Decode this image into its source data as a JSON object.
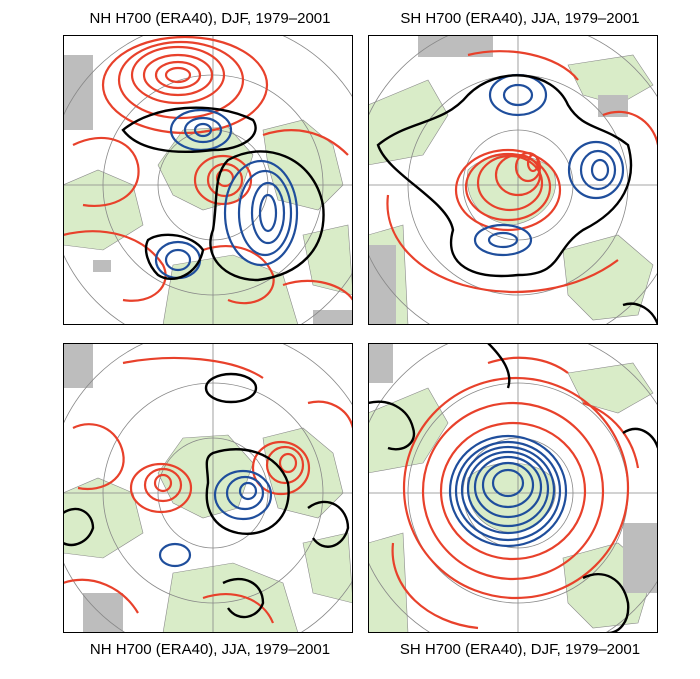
{
  "figure": {
    "panels": [
      {
        "title": "NH H700 (ERA40), DJF, 1979–2001"
      },
      {
        "title": "SH H700 (ERA40), JJA, 1979–2001"
      },
      {
        "title": "NH H700 (ERA40), JJA, 1979–2001"
      },
      {
        "title": "SH H700 (ERA40), DJF, 1979–2001"
      }
    ],
    "colors": {
      "positive_contour": "#e8412b",
      "negative_contour": "#1f4e9c",
      "zero_contour": "#000000",
      "land": "#d9ecc8",
      "missing_data": "#bdbdbd",
      "grid": "#888888"
    }
  }
}
